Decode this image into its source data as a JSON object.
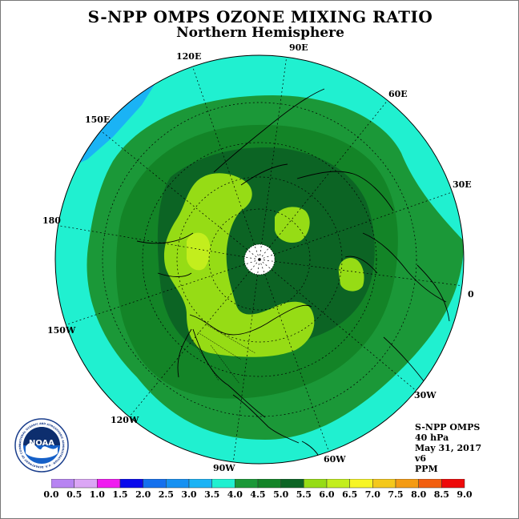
{
  "header": {
    "title": "S-NPP OMPS OZONE MIXING RATIO",
    "subtitle": "Northern Hemisphere"
  },
  "map": {
    "projection": "polar stereographic, north pole centered",
    "longitude_labels": [
      {
        "id": "lon-90e",
        "text": "90E"
      },
      {
        "id": "lon-60e",
        "text": "60E"
      },
      {
        "id": "lon-30e",
        "text": "30E"
      },
      {
        "id": "lon-0",
        "text": "0"
      },
      {
        "id": "lon-30w",
        "text": "30W"
      },
      {
        "id": "lon-60w",
        "text": "60W"
      },
      {
        "id": "lon-90w",
        "text": "90W"
      },
      {
        "id": "lon-120w",
        "text": "120W"
      },
      {
        "id": "lon-150w",
        "text": "150W"
      },
      {
        "id": "lon-180",
        "text": "180"
      },
      {
        "id": "lon-150e",
        "text": "150E"
      },
      {
        "id": "lon-120e",
        "text": "120E"
      }
    ]
  },
  "info": {
    "instrument": "S-NPP OMPS",
    "level": "40 hPa",
    "date": "May 31, 2017",
    "version": "v6",
    "units": "PPM"
  },
  "colorbar": {
    "ticks": [
      "0.0",
      "0.5",
      "1.0",
      "1.5",
      "2.0",
      "2.5",
      "3.0",
      "3.5",
      "4.0",
      "4.5",
      "5.0",
      "5.5",
      "6.0",
      "6.5",
      "7.0",
      "7.5",
      "8.0",
      "8.5",
      "9.0"
    ],
    "colors": [
      "#b784f2",
      "#dba6f5",
      "#f01bf0",
      "#0a0aec",
      "#1470ee",
      "#1691f2",
      "#1ab3f5",
      "#20f0d0",
      "#1b9838",
      "#138427",
      "#0c6424",
      "#96dc15",
      "#c3ee1d",
      "#f7f525",
      "#f4c81b",
      "#f49b13",
      "#f25e0f",
      "#ee0a0a",
      "#8c5a3c"
    ]
  },
  "logo": {
    "name": "NOAA",
    "ring_text": "NATIONAL OCEANIC AND ATMOSPHERIC ADMINISTRATION · U.S. DEPARTMENT OF COMMERCE"
  }
}
